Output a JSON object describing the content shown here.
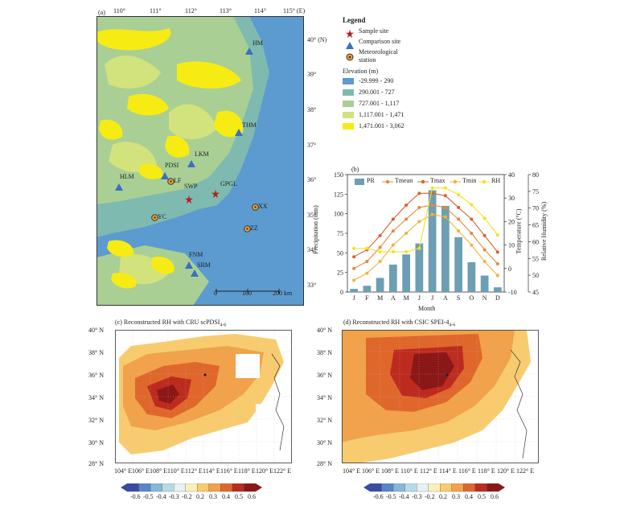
{
  "panel_a": {
    "label": "(a)",
    "lon_ticks": [
      "110°",
      "111°",
      "112°",
      "113°",
      "114°",
      "115° (E)"
    ],
    "lat_ticks": [
      "40° (N)",
      "39°",
      "38°",
      "37°",
      "36°",
      "35°",
      "34°",
      "33°"
    ],
    "sites": [
      {
        "name": "HM",
        "type": "comparison"
      },
      {
        "name": "THM",
        "type": "comparison"
      },
      {
        "name": "LKM",
        "type": "comparison"
      },
      {
        "name": "PDSI",
        "type": "comparison"
      },
      {
        "name": "HLM",
        "type": "comparison"
      },
      {
        "name": "LF",
        "type": "meteorological"
      },
      {
        "name": "SWP",
        "type": "sample"
      },
      {
        "name": "GPGL",
        "type": "sample"
      },
      {
        "name": "XX",
        "type": "meteorological"
      },
      {
        "name": "YC",
        "type": "meteorological"
      },
      {
        "name": "ZZ",
        "type": "meteorological"
      },
      {
        "name": "FNM",
        "type": "comparison"
      },
      {
        "name": "SRM",
        "type": "comparison"
      }
    ],
    "scale_bar": {
      "labels": [
        "0",
        "100",
        "200 km"
      ]
    },
    "legend": {
      "title": "Legend",
      "sample": "Sample site",
      "comparison": "Comparison site",
      "met_line1": "Meteorological",
      "met_line2": "station",
      "elev_title": "Elevation (m)",
      "elev_classes": [
        {
          "label": "-29.999 - 290",
          "color": "#5b9bd0"
        },
        {
          "label": "290.001 - 727",
          "color": "#7fbab0"
        },
        {
          "label": "727.001 - 1,117",
          "color": "#a9cf94"
        },
        {
          "label": "1,117.001 - 1,471",
          "color": "#d2e27c"
        },
        {
          "label": "1,471.001 - 3,062",
          "color": "#f6ec14"
        }
      ],
      "colors": {
        "sample": "#b22222",
        "comparison": "#3a6fc4",
        "met_fill": "#f0a030"
      }
    }
  },
  "chart_data": {
    "type": "bar-line",
    "panel_label": "(b)",
    "categories": [
      "J",
      "F",
      "M",
      "A",
      "M",
      "J",
      "J",
      "A",
      "S",
      "O",
      "N",
      "D"
    ],
    "xlabel": "Month",
    "ylabel_left": "Precipitation (mm)",
    "ylabel_right1": "Temperature (°C)",
    "ylabel_right2": "Relative Humidity (%)",
    "ylim_left": [
      0,
      150
    ],
    "ylim_temp": [
      -10,
      40
    ],
    "ylim_rh": [
      45,
      80
    ],
    "ticks_left": [
      "0",
      "25",
      "50",
      "75",
      "100",
      "125",
      "150"
    ],
    "ticks_temp": [
      "-10",
      "0",
      "10",
      "20",
      "30",
      "40"
    ],
    "ticks_rh": [
      "45",
      "50",
      "55",
      "60",
      "65",
      "70",
      "75",
      "80"
    ],
    "series": [
      {
        "name": "PR",
        "kind": "bar",
        "axis": "left",
        "color": "#6d9fb4",
        "values": [
          4,
          8,
          18,
          35,
          48,
          62,
          130,
          110,
          70,
          38,
          21,
          6
        ]
      },
      {
        "name": "Tmean",
        "kind": "line",
        "axis": "temp",
        "color": "#e8883a",
        "values": [
          0,
          3,
          9,
          16,
          21,
          26,
          27,
          26,
          21,
          15,
          8,
          2
        ]
      },
      {
        "name": "Tmax",
        "kind": "line",
        "axis": "temp",
        "color": "#d9602e",
        "values": [
          5,
          8,
          14,
          21,
          27,
          32,
          32,
          31,
          26,
          21,
          14,
          7
        ]
      },
      {
        "name": "Tmin",
        "kind": "line",
        "axis": "temp",
        "color": "#f3b23a",
        "values": [
          -5,
          -2,
          3,
          10,
          15,
          20,
          23,
          22,
          16,
          10,
          3,
          -3
        ]
      },
      {
        "name": "RH",
        "kind": "line",
        "axis": "rh",
        "color": "#f5e21f",
        "values": [
          58,
          58,
          57,
          57,
          57,
          58,
          76,
          76,
          74,
          71,
          67,
          62
        ]
      }
    ]
  },
  "panel_c": {
    "title": "(c) Reconstructed RH with CRU scPDSI",
    "sub": "4-6",
    "lat_ticks": [
      "40° N",
      "38° N",
      "36° N",
      "34° N",
      "32° N",
      "30° N",
      "28° N"
    ],
    "lon_ticks": [
      "104° E",
      "106° E",
      "108° E",
      "110° E",
      "112° E",
      "114° E",
      "116° E",
      "118° E",
      "120° E",
      "122° E"
    ]
  },
  "panel_d": {
    "title": "(d) Reconstructed RH with CSIC SPEI-4",
    "sub": "4-6",
    "lat_ticks": [
      "40° N",
      "38° N",
      "36° N",
      "34° N",
      "32° N",
      "30° N",
      "28° N"
    ],
    "lon_ticks": [
      "104° E",
      "106° E",
      "108° E",
      "110° E",
      "112° E",
      "114° E",
      "116° E",
      "118° E",
      "120° E",
      "122° E"
    ]
  },
  "colorbar": {
    "ticks": [
      "-0.6",
      "-0.5",
      "-0.4",
      "-0.3",
      "-0.2",
      "0.2",
      "0.3",
      "0.4",
      "0.5",
      "0.6"
    ],
    "colors": [
      "#3a4aa8",
      "#5a85c7",
      "#85b8d8",
      "#b6dbe6",
      "#e6f2f2",
      "#fbf1b8",
      "#f8cc6e",
      "#f1a24a",
      "#e0672c",
      "#bd2b1f",
      "#8b1717"
    ]
  }
}
